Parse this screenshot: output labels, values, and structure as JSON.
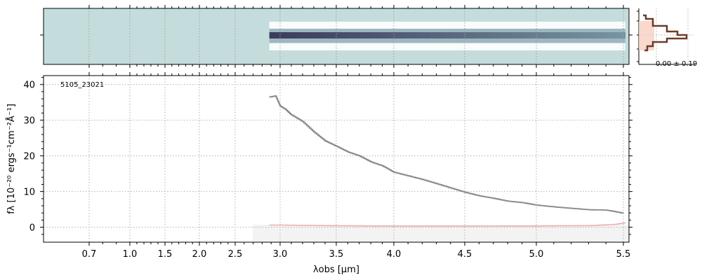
{
  "chart_data": [
    {
      "panel": "2d-spectrum",
      "type": "heatmap",
      "description_colors": {
        "background": "#c4dcdc",
        "trace_core": "#3b3b5c",
        "trace_halo": "#ffffff"
      },
      "x_start_um": 2.88,
      "x_end_um": 5.52
    },
    {
      "panel": "1d-spectrum",
      "type": "line",
      "object_label": "5105_23021",
      "xlabel": "λobs [μm]",
      "ylabel": "fλ [10⁻²⁰ ergs⁻¹cm⁻²Å⁻¹]",
      "ylim": [
        -4.2,
        42.5
      ],
      "x_ticks": [
        0.7,
        1.0,
        1.5,
        2.0,
        2.5,
        3.0,
        3.5,
        4.0,
        4.5,
        5.0,
        5.5
      ],
      "x_tick_labels": [
        "0.7",
        "1.0",
        "1.5",
        "2.0",
        "2.5",
        "3.0",
        "3.5",
        "4.0",
        "4.5",
        "5.0",
        "5.5"
      ],
      "y_ticks": [
        0,
        10,
        20,
        30,
        40
      ],
      "grid": true,
      "series": [
        {
          "role": "flux",
          "color": "#8a8a8a",
          "x": [
            2.88,
            2.95,
            3.0,
            3.05,
            3.1,
            3.2,
            3.3,
            3.4,
            3.5,
            3.6,
            3.7,
            3.8,
            3.9,
            4.0,
            4.1,
            4.2,
            4.3,
            4.4,
            4.5,
            4.6,
            4.7,
            4.8,
            4.9,
            5.0,
            5.1,
            5.2,
            5.3,
            5.4,
            5.45,
            5.5
          ],
          "y": [
            36.5,
            36.8,
            34.0,
            33.0,
            31.5,
            29.6,
            26.7,
            24.2,
            22.7,
            21.1,
            20.0,
            18.3,
            17.2,
            15.4,
            14.4,
            13.4,
            12.2,
            11.0,
            9.8,
            8.8,
            8.1,
            7.3,
            6.9,
            6.2,
            5.7,
            5.3,
            4.9,
            4.8,
            4.4,
            3.9
          ]
        },
        {
          "role": "error",
          "color": "#f0b0b0",
          "x": [
            2.88,
            3.0,
            3.5,
            4.0,
            4.5,
            5.0,
            5.3,
            5.45,
            5.52
          ],
          "y": [
            0.6,
            0.6,
            0.4,
            0.3,
            0.3,
            0.35,
            0.45,
            0.8,
            1.3
          ]
        }
      ]
    },
    {
      "panel": "profile",
      "type": "line",
      "annotation": "0.00 ± 0.19",
      "color": "#6b3e2a",
      "fill_color": "#f8d0c0"
    }
  ]
}
